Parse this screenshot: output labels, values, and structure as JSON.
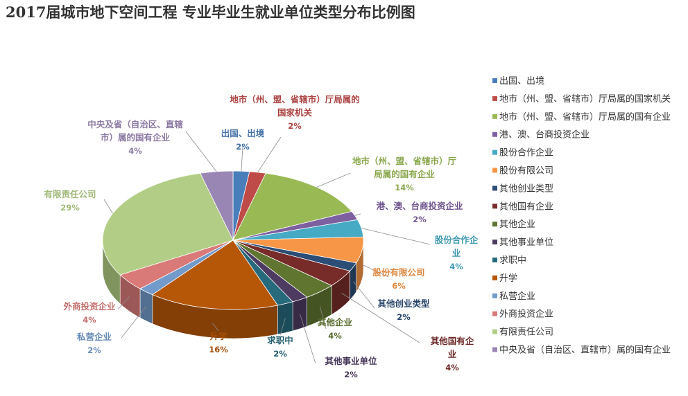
{
  "chart_data": {
    "type": "pie",
    "title": "2017届城市地下空间工程 专业毕业生就业单位类型分布比例图",
    "legend_position": "right",
    "slices": [
      {
        "name": "出国、出境",
        "value": 2,
        "label": "2%",
        "color": "#4a7ebb"
      },
      {
        "name": "地市（州、盟、省辖市）厅局属的国家机关",
        "value": 2,
        "label": "2%",
        "color": "#be4b48"
      },
      {
        "name": "地市（州、盟、省辖市）厅局属的国有企业",
        "value": 14,
        "label": "14%",
        "color": "#98b954"
      },
      {
        "name": "港、澳、台商投资企业",
        "value": 2,
        "label": "2%",
        "color": "#7d60a0"
      },
      {
        "name": "股份合作企业",
        "value": 4,
        "label": "4%",
        "color": "#46aac5"
      },
      {
        "name": "股份有限公司",
        "value": 6,
        "label": "6%",
        "color": "#f79646"
      },
      {
        "name": "其他创业类型",
        "value": 2,
        "label": "2%",
        "color": "#2c4d75"
      },
      {
        "name": "其他国有企业",
        "value": 4,
        "label": "4%",
        "color": "#772c2a"
      },
      {
        "name": "其他企业",
        "value": 4,
        "label": "4%",
        "color": "#5f7530"
      },
      {
        "name": "其他事业单位",
        "value": 2,
        "label": "2%",
        "color": "#4d3b62"
      },
      {
        "name": "求职中",
        "value": 2,
        "label": "2%",
        "color": "#276a7c"
      },
      {
        "name": "升学",
        "value": 16,
        "label": "16%",
        "color": "#b65708"
      },
      {
        "name": "私营企业",
        "value": 2,
        "label": "2%",
        "color": "#729aca"
      },
      {
        "name": "外商投资企业",
        "value": 4,
        "label": "4%",
        "color": "#d97a78"
      },
      {
        "name": "有限责任公司",
        "value": 29,
        "label": "29%",
        "color": "#b2cd86"
      },
      {
        "name": "中央及省（自治区、直辖市）属的国有企业",
        "value": 4,
        "label": "4%",
        "color": "#9a86b5"
      }
    ],
    "callouts": [
      {
        "lines": [
          "出国、出境"
        ]
      },
      {
        "lines": [
          "地市（州、盟、省辖市）厅局属的",
          "国家机关"
        ]
      },
      {
        "lines": [
          "地市（州、盟、省辖市）厅",
          "局属的国有企业"
        ]
      },
      {
        "lines": [
          "港、澳、台商投资企业"
        ]
      },
      {
        "lines": [
          "股份合作企",
          "业"
        ]
      },
      {
        "lines": [
          "股份有限公司"
        ]
      },
      {
        "lines": [
          "其他创业类型"
        ]
      },
      {
        "lines": [
          "其他国有企",
          "业"
        ]
      },
      {
        "lines": [
          "其他企业"
        ]
      },
      {
        "lines": [
          "其他事业单位"
        ]
      },
      {
        "lines": [
          "求职中"
        ]
      },
      {
        "lines": [
          "升学"
        ]
      },
      {
        "lines": [
          "私营企业"
        ]
      },
      {
        "lines": [
          "外商投资企业"
        ]
      },
      {
        "lines": [
          "有限责任公司"
        ]
      },
      {
        "lines": [
          "中央及省（自治区、直辖",
          "市）属的国有企业"
        ]
      }
    ]
  }
}
